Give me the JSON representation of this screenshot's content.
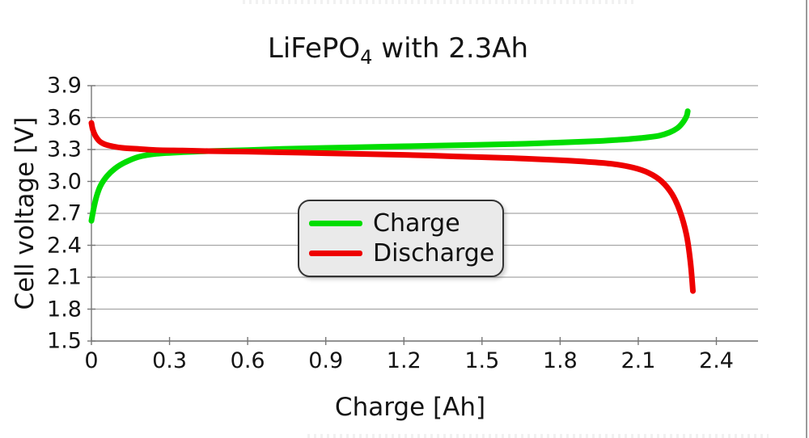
{
  "window": {
    "right_divider_color": "#9a9a9a"
  },
  "chart_data": {
    "type": "line",
    "title": {
      "prefix": "LiFePO",
      "subscript": "4",
      "suffix": " with 2.3Ah"
    },
    "xlabel": "Charge [Ah]",
    "ylabel": "Cell voltage [V]",
    "xlim": [
      0,
      2.56
    ],
    "ylim": [
      1.5,
      3.9
    ],
    "grid": "horizontal-only",
    "grid_color": "#a6a6a6",
    "axis_color": "#777777",
    "xticks": {
      "values": [
        0,
        0.3,
        0.6,
        0.9,
        1.2,
        1.5,
        1.8,
        2.1,
        2.4
      ],
      "labels": [
        "0",
        "0.3",
        "0.6",
        "0.9",
        "1.2",
        "1.5",
        "1.8",
        "2.1",
        "2.4"
      ]
    },
    "yticks": {
      "values": [
        3.9,
        3.6,
        3.3,
        3.0,
        2.7,
        2.4,
        2.1,
        1.8,
        1.5
      ],
      "labels": [
        "3.9",
        "3.6",
        "3.3",
        "3.0",
        "2.7",
        "2.4",
        "2.1",
        "1.8",
        "1.5"
      ]
    },
    "legend": {
      "position": "center",
      "background": "#eaeaea",
      "items": [
        {
          "label": "Charge",
          "color": "#00dd00"
        },
        {
          "label": "Discharge",
          "color": "#ee0000"
        }
      ]
    },
    "series": [
      {
        "name": "Charge",
        "color": "#00dd00",
        "points": [
          [
            0.0,
            2.63
          ],
          [
            0.01,
            2.76
          ],
          [
            0.02,
            2.86
          ],
          [
            0.035,
            2.96
          ],
          [
            0.06,
            3.05
          ],
          [
            0.09,
            3.12
          ],
          [
            0.13,
            3.18
          ],
          [
            0.18,
            3.23
          ],
          [
            0.25,
            3.26
          ],
          [
            0.35,
            3.275
          ],
          [
            0.45,
            3.285
          ],
          [
            0.6,
            3.295
          ],
          [
            0.8,
            3.31
          ],
          [
            1.0,
            3.32
          ],
          [
            1.2,
            3.33
          ],
          [
            1.4,
            3.34
          ],
          [
            1.6,
            3.35
          ],
          [
            1.8,
            3.365
          ],
          [
            1.95,
            3.38
          ],
          [
            2.05,
            3.395
          ],
          [
            2.12,
            3.41
          ],
          [
            2.18,
            3.43
          ],
          [
            2.22,
            3.46
          ],
          [
            2.25,
            3.5
          ],
          [
            2.27,
            3.55
          ],
          [
            2.285,
            3.61
          ],
          [
            2.29,
            3.66
          ]
        ]
      },
      {
        "name": "Discharge",
        "color": "#ee0000",
        "points": [
          [
            0.0,
            3.55
          ],
          [
            0.005,
            3.49
          ],
          [
            0.015,
            3.43
          ],
          [
            0.03,
            3.38
          ],
          [
            0.05,
            3.35
          ],
          [
            0.08,
            3.33
          ],
          [
            0.12,
            3.315
          ],
          [
            0.18,
            3.305
          ],
          [
            0.25,
            3.295
          ],
          [
            0.35,
            3.29
          ],
          [
            0.45,
            3.285
          ],
          [
            0.6,
            3.28
          ],
          [
            0.8,
            3.27
          ],
          [
            1.0,
            3.26
          ],
          [
            1.2,
            3.25
          ],
          [
            1.4,
            3.235
          ],
          [
            1.6,
            3.22
          ],
          [
            1.8,
            3.2
          ],
          [
            1.9,
            3.185
          ],
          [
            2.0,
            3.165
          ],
          [
            2.08,
            3.13
          ],
          [
            2.14,
            3.08
          ],
          [
            2.19,
            3.0
          ],
          [
            2.23,
            2.88
          ],
          [
            2.26,
            2.72
          ],
          [
            2.285,
            2.5
          ],
          [
            2.3,
            2.25
          ],
          [
            2.31,
            1.97
          ]
        ]
      }
    ]
  }
}
